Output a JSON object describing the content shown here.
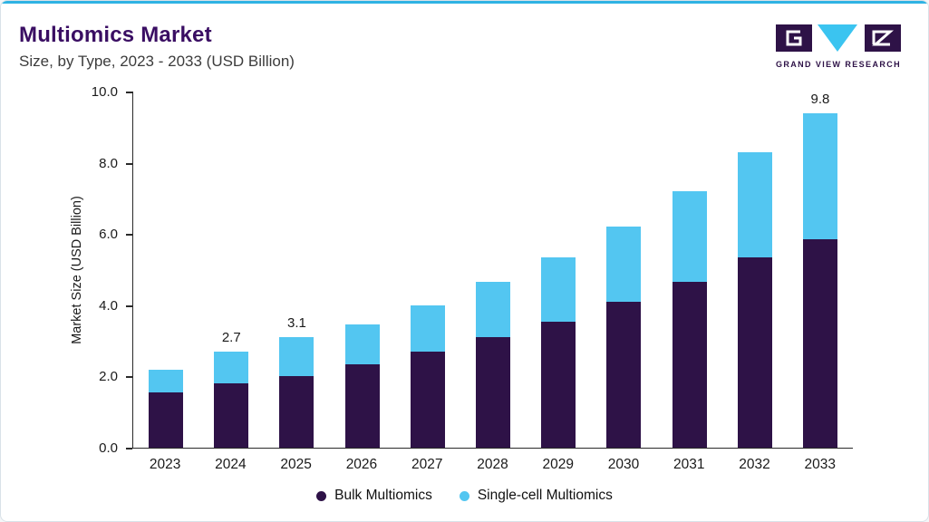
{
  "header": {
    "title": "Multiomics Market",
    "subtitle": "Size, by Type, 2023 - 2033 (USD Billion)"
  },
  "logo": {
    "text": "GRAND VIEW RESEARCH"
  },
  "colors": {
    "accent_line": "#2FB3E3",
    "title": "#3A0E63",
    "axis": "#2a2a2a"
  },
  "chart_data": {
    "type": "bar",
    "stacked": true,
    "title": "Multiomics Market Size, by Type, 2023 - 2033 (USD Billion)",
    "xlabel": "",
    "ylabel": "Market Size (USD Billion)",
    "ylim": [
      0,
      10
    ],
    "yticks": [
      "0.0",
      "2.0",
      "4.0",
      "6.0",
      "8.0",
      "10.0"
    ],
    "grid": false,
    "legend_position": "bottom",
    "categories": [
      "2023",
      "2024",
      "2025",
      "2026",
      "2027",
      "2028",
      "2029",
      "2030",
      "2031",
      "2032",
      "2033"
    ],
    "series": [
      {
        "name": "Bulk Multiomics",
        "color": "#2E1247",
        "values": [
          1.55,
          1.8,
          2.0,
          2.35,
          2.7,
          3.1,
          3.55,
          4.1,
          4.65,
          5.35,
          6.1
        ]
      },
      {
        "name": "Single-cell Multiomics",
        "color": "#53C6F1",
        "values": [
          0.65,
          0.9,
          1.1,
          1.1,
          1.3,
          1.55,
          1.8,
          2.1,
          2.55,
          2.95,
          3.7
        ]
      }
    ],
    "totals": [
      2.2,
      2.7,
      3.1,
      3.45,
      4.0,
      4.65,
      5.35,
      6.2,
      7.2,
      8.3,
      9.8
    ],
    "bar_labels": [
      "",
      "2.7",
      "3.1",
      "",
      "",
      "",
      "",
      "",
      "",
      "",
      "9.8"
    ]
  }
}
